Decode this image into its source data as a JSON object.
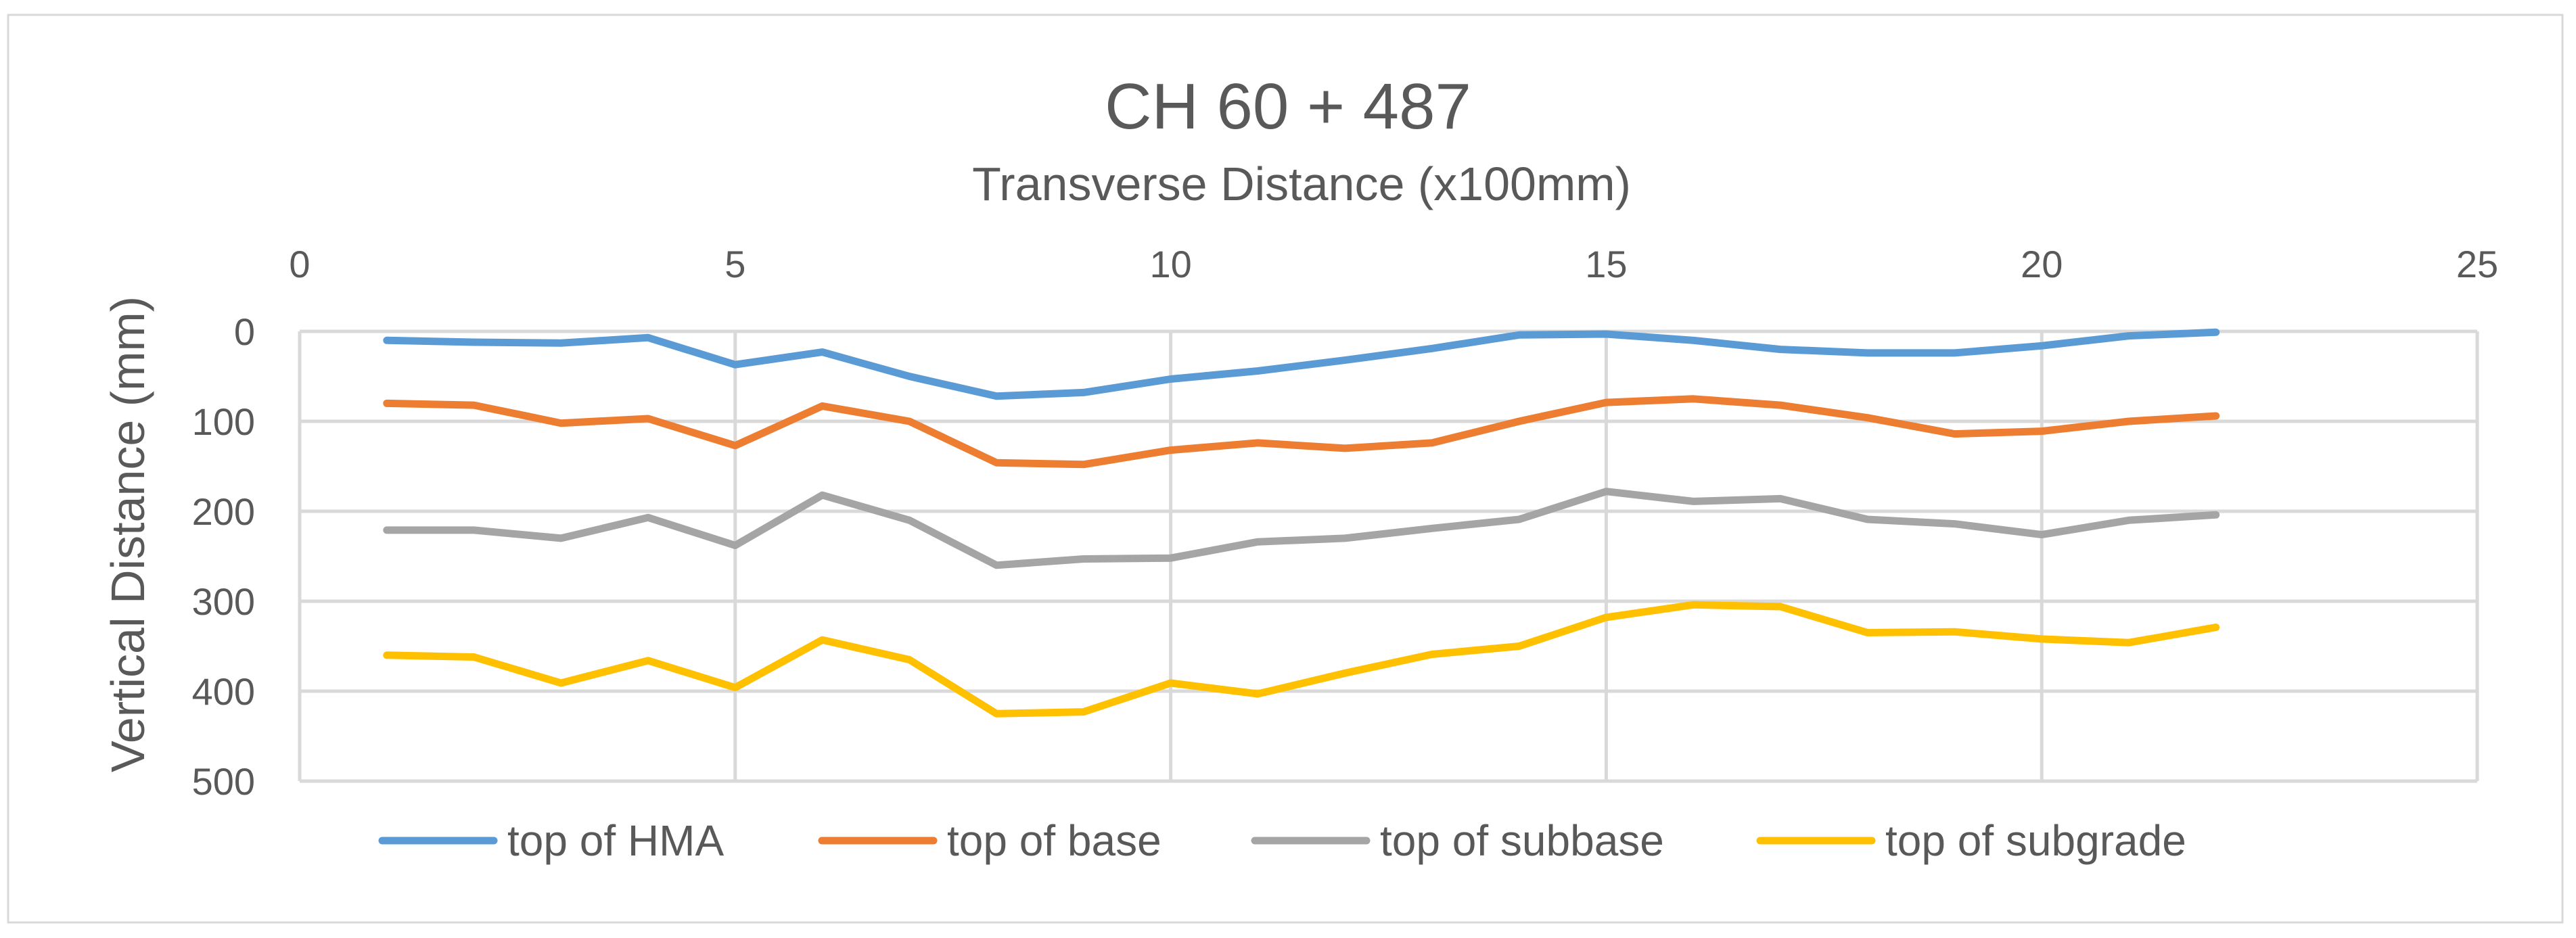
{
  "chart_data": {
    "type": "line",
    "title": "CH 60 + 487",
    "xlabel": "Transverse Distance (x100mm)",
    "ylabel": "Vertical Distance (mm)",
    "x_axis_position": "top",
    "y_axis_inverted": true,
    "xlim": [
      0,
      25
    ],
    "ylim": [
      0,
      500
    ],
    "x_ticks": [
      0,
      5,
      10,
      15,
      20,
      25
    ],
    "y_ticks": [
      0,
      100,
      200,
      300,
      400,
      500
    ],
    "grid": true,
    "legend_position": "bottom",
    "x": [
      1,
      2,
      3,
      4,
      5,
      6,
      7,
      8,
      9,
      10,
      11,
      12,
      13,
      14,
      15,
      16,
      17,
      18,
      19,
      20,
      21,
      22
    ],
    "series": [
      {
        "name": "top of HMA",
        "color": "#5B9BD5",
        "values": [
          10,
          12,
          13,
          7,
          37,
          23,
          50,
          72,
          68,
          53,
          44,
          32,
          19,
          4,
          3,
          10,
          20,
          24,
          24,
          16,
          5,
          1
        ]
      },
      {
        "name": "top of base",
        "color": "#ED7D31",
        "values": [
          80,
          82,
          102,
          97,
          127,
          83,
          100,
          146,
          148,
          132,
          124,
          130,
          124,
          100,
          79,
          75,
          82,
          96,
          114,
          111,
          100,
          94
        ]
      },
      {
        "name": "top of subbase",
        "color": "#A5A5A5",
        "values": [
          221,
          221,
          230,
          207,
          238,
          182,
          210,
          260,
          253,
          252,
          234,
          230,
          219,
          209,
          178,
          189,
          186,
          209,
          214,
          226,
          210,
          204
        ]
      },
      {
        "name": "top of subgrade",
        "color": "#FFC000",
        "values": [
          360,
          362,
          391,
          366,
          396,
          343,
          365,
          425,
          423,
          391,
          403,
          380,
          359,
          350,
          318,
          304,
          306,
          335,
          334,
          342,
          346,
          329
        ]
      }
    ]
  }
}
